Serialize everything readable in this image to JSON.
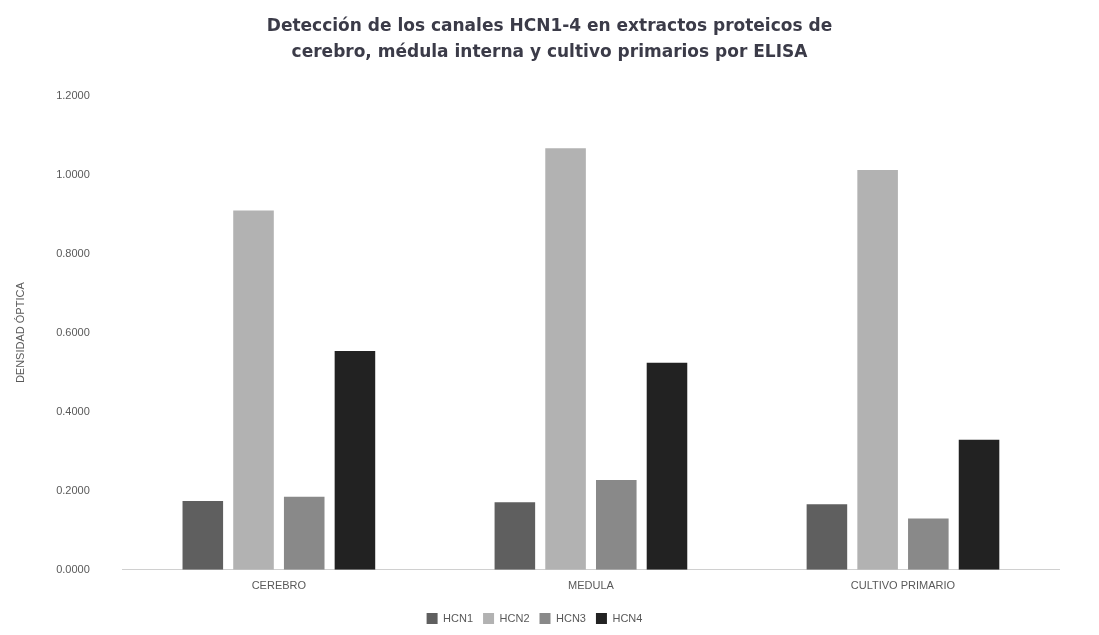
{
  "chart_data": {
    "type": "bar",
    "title": "Detección de los canales HCN1-4 en extractos proteicos de cerebro, médula interna y cultivo primarios por ELISA",
    "ylabel": "DENSIDAD ÓPTICA",
    "categories": [
      "CEREBRO",
      "MEDULA",
      "CULTIVO PRIMARIO"
    ],
    "series": [
      {
        "name": "HCN1",
        "color": "#5f5f5f",
        "values": [
          0.174,
          0.171,
          0.166
        ]
      },
      {
        "name": "HCN2",
        "color": "#b2b2b2",
        "values": [
          0.909,
          1.067,
          1.012
        ]
      },
      {
        "name": "HCN3",
        "color": "#898989",
        "values": [
          0.185,
          0.227,
          0.13
        ]
      },
      {
        "name": "HCN4",
        "color": "#222222",
        "values": [
          0.554,
          0.524,
          0.329
        ]
      }
    ],
    "ylim": [
      0,
      1.2
    ],
    "yticks": [
      {
        "value": 0,
        "label": "0.0000"
      },
      {
        "value": 0.2,
        "label": "0.2000"
      },
      {
        "value": 0.4,
        "label": "0.4000"
      },
      {
        "value": 0.6,
        "label": "0.6000"
      },
      {
        "value": 0.8,
        "label": "0.8000"
      },
      {
        "value": 1,
        "label": "1.0000"
      },
      {
        "value": 1.2,
        "label": "1.2000"
      }
    ],
    "grid": false,
    "legend": "bottom"
  }
}
